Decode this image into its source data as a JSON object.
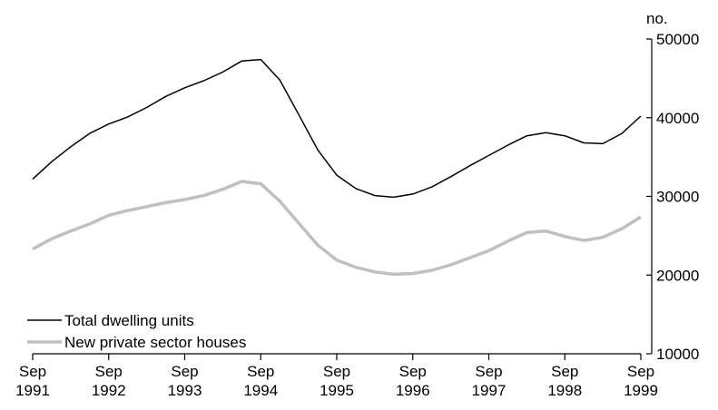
{
  "chart_data": {
    "type": "line",
    "y_label": "no.",
    "categories": [
      "Sep 1991",
      null,
      null,
      null,
      "Sep 1992",
      null,
      null,
      null,
      "Sep 1993",
      null,
      null,
      null,
      "Sep 1994",
      null,
      null,
      null,
      "Sep 1995",
      null,
      null,
      null,
      "Sep 1996",
      null,
      null,
      null,
      "Sep 1997",
      null,
      null,
      null,
      "Sep 1998",
      null,
      null,
      null,
      "Sep 1999"
    ],
    "series": [
      {
        "name": "Total dwelling units",
        "color": "#000000",
        "values": [
          32200,
          34400,
          36300,
          38000,
          39200,
          40100,
          41300,
          42700,
          43800,
          44700,
          45800,
          47200,
          47400,
          44800,
          40400,
          35900,
          32700,
          31000,
          30100,
          29900,
          30300,
          31200,
          32500,
          33900,
          35200,
          36500,
          37700,
          38100,
          37700,
          36800,
          36700,
          38000,
          40200
        ]
      },
      {
        "name": "New private sector houses",
        "color": "#c0c0c0",
        "values": [
          23300,
          24600,
          25600,
          26500,
          27600,
          28200,
          28700,
          29200,
          29600,
          30100,
          30900,
          31900,
          31600,
          29400,
          26600,
          23800,
          21900,
          21000,
          20400,
          20100,
          20200,
          20600,
          21300,
          22200,
          23100,
          24300,
          25400,
          25600,
          24900,
          24400,
          24800,
          25900,
          27400
        ]
      }
    ],
    "ylim": [
      10000,
      50000
    ],
    "yticks": [
      10000,
      20000,
      30000,
      40000,
      50000
    ],
    "y_axis_side": "right",
    "legend": "lower left",
    "grid": false
  }
}
